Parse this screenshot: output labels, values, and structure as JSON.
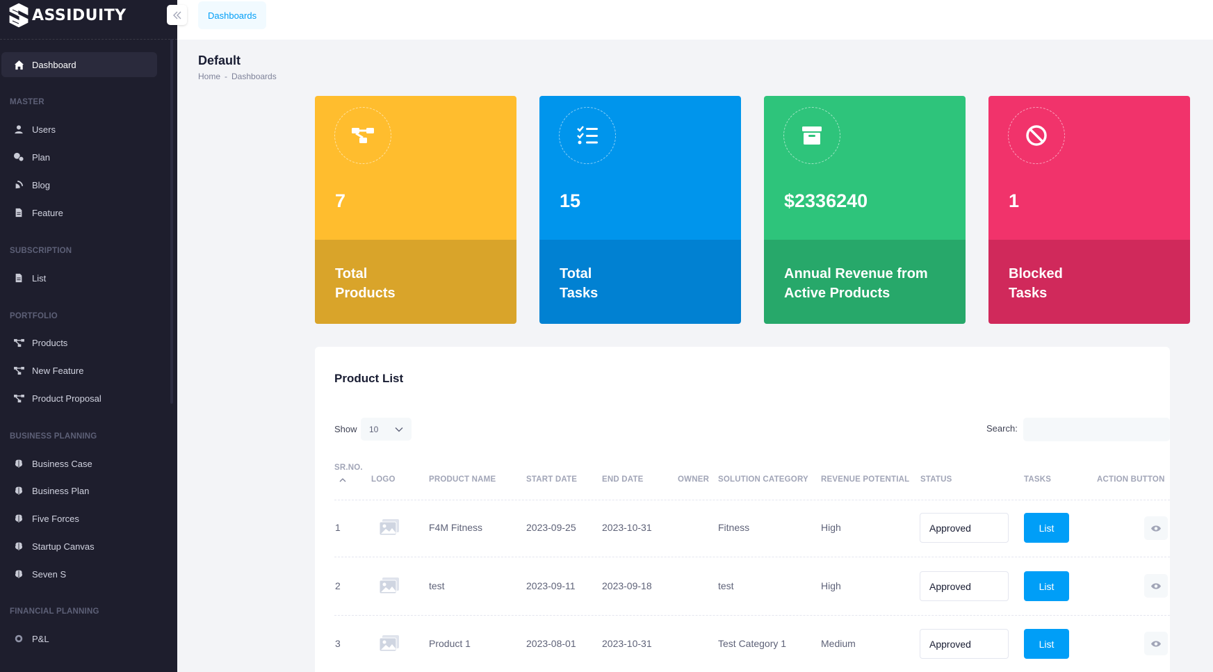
{
  "brand": {
    "name": "ASSIDUITY"
  },
  "header": {
    "tab": "Dashboards"
  },
  "page": {
    "title": "Default",
    "breadcrumb": [
      "Home",
      "-",
      "Dashboards"
    ]
  },
  "sidebar": {
    "dashboard": "Dashboard",
    "sections": {
      "master": "MASTER",
      "subscription": "SUBSCRIPTION",
      "portfolio": "PORTFOLIO",
      "business_planning": "BUSINESS PLANNING",
      "financial_planning": "FINANCIAL PLANNING"
    },
    "items": {
      "users": "Users",
      "plan": "Plan",
      "blog": "Blog",
      "feature": "Feature",
      "list": "List",
      "products": "Products",
      "new_feature": "New Feature",
      "product_proposal": "Product Proposal",
      "business_case": "Business Case",
      "business_plan": "Business Plan",
      "five_forces": "Five Forces",
      "startup_canvas": "Startup Canvas",
      "seven_s": "Seven S",
      "pl": "P&L"
    }
  },
  "cards": [
    {
      "value": "7",
      "label": "Total Products",
      "icon": "products-icon",
      "color_top": "#ffbd2e",
      "color_bottom": "#d9a42a"
    },
    {
      "value": "15",
      "label": "Total Tasks",
      "icon": "task-list-icon",
      "color_top": "#0095ec",
      "color_bottom": "#0181d2"
    },
    {
      "value": "$2336240",
      "label": "Annual Revenue from Active Products",
      "icon": "archive-icon",
      "color_top": "#2ec47b",
      "color_bottom": "#27a86a"
    },
    {
      "value": "1",
      "label": "Blocked Tasks",
      "icon": "blocked-icon",
      "color_top": "#f1336b",
      "color_bottom": "#d0295b"
    }
  ],
  "product_list": {
    "title": "Product List",
    "show_label": "Show",
    "page_size": "10",
    "search_label": "Search:",
    "columns": {
      "srno": "SR.NO.",
      "logo": "LOGO",
      "name": "PRODUCT NAME",
      "start": "START DATE",
      "end": "END DATE",
      "owner": "OWNER",
      "category": "SOLUTION CATEGORY",
      "revenue": "REVENUE POTENTIAL",
      "status": "STATUS",
      "tasks": "TASKS",
      "action": "ACTION BUTTON"
    },
    "rows": [
      {
        "srno": "1",
        "name": "F4M Fitness",
        "start": "2023-09-25",
        "end": "2023-10-31",
        "owner": "",
        "category": "Fitness",
        "revenue": "High",
        "status": "Approved",
        "tasks": "List"
      },
      {
        "srno": "2",
        "name": "test",
        "start": "2023-09-11",
        "end": "2023-09-18",
        "owner": "",
        "category": "test",
        "revenue": "High",
        "status": "Approved",
        "tasks": "List"
      },
      {
        "srno": "3",
        "name": "Product 1",
        "start": "2023-08-01",
        "end": "2023-10-31",
        "owner": "",
        "category": "Test Category 1",
        "revenue": "Medium",
        "status": "Approved",
        "tasks": "List"
      }
    ]
  }
}
